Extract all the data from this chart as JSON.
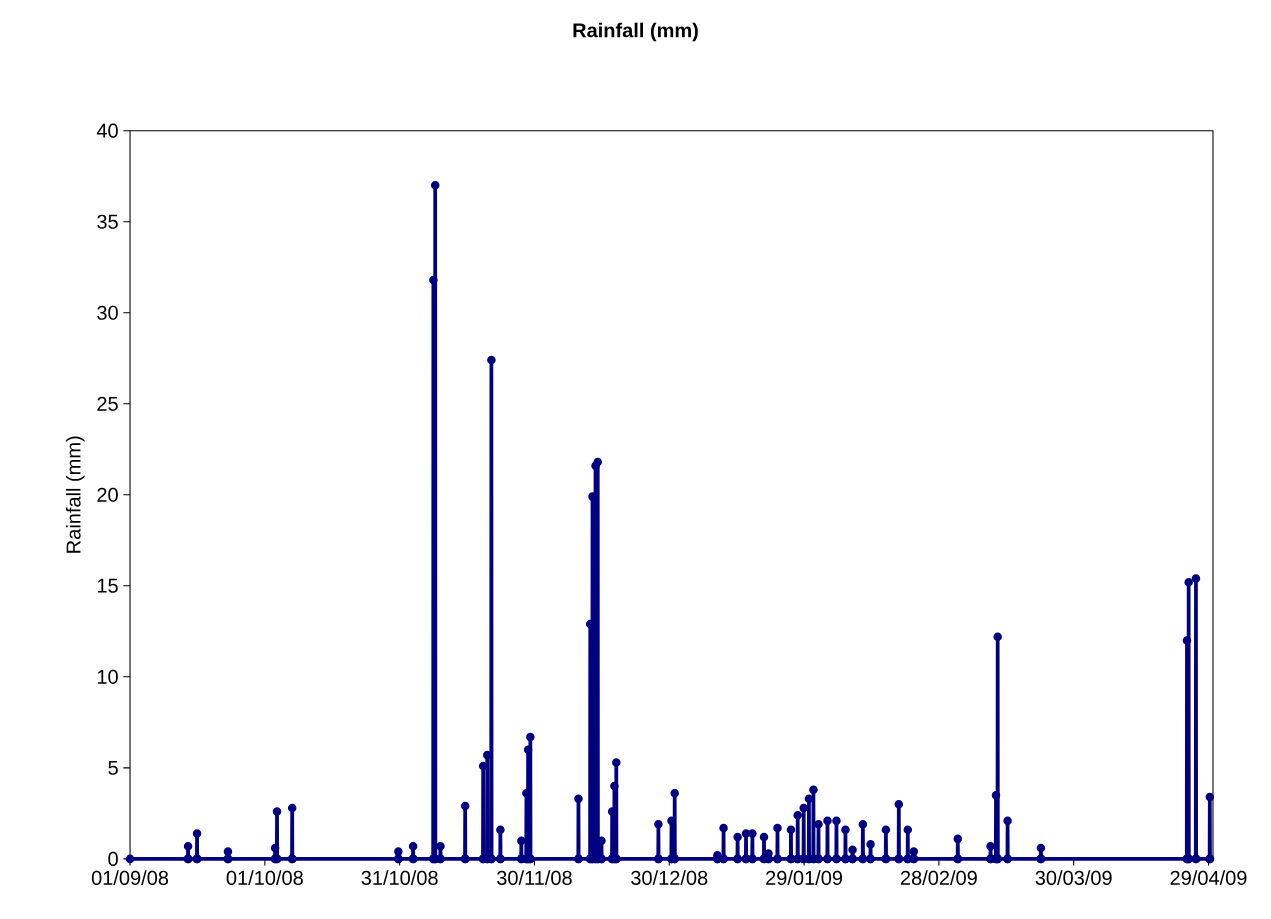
{
  "chart_data": {
    "type": "line",
    "title": "Rainfall (mm)",
    "ylabel": "Rainfall (mm)",
    "color": "#000080",
    "marker": "circle",
    "line_style": "solid",
    "grid": false,
    "xlim": [
      "2008-09-01",
      "2009-04-30"
    ],
    "ylim": [
      0,
      40
    ],
    "xticks": [
      {
        "value": "2008-09-01",
        "label": "01/09/08"
      },
      {
        "value": "2008-10-01",
        "label": "01/10/08"
      },
      {
        "value": "2008-10-31",
        "label": "31/10/08"
      },
      {
        "value": "2008-11-30",
        "label": "30/11/08"
      },
      {
        "value": "2008-12-30",
        "label": "30/12/08"
      },
      {
        "value": "2009-01-29",
        "label": "29/01/09"
      },
      {
        "value": "2009-02-28",
        "label": "28/02/09"
      },
      {
        "value": "2009-03-30",
        "label": "30/03/09"
      },
      {
        "value": "2009-04-29",
        "label": "29/04/09"
      }
    ],
    "yticks": [
      0,
      5,
      10,
      15,
      20,
      25,
      30,
      35,
      40
    ],
    "x": [
      "2008-09-01T00:00",
      "2008-09-13T21:00",
      "2008-09-13T22:00",
      "2008-09-13T23:00",
      "2008-09-15T21:00",
      "2008-09-15T22:00",
      "2008-09-15T23:00",
      "2008-09-22T18:00",
      "2008-09-22T19:00",
      "2008-09-22T20:00",
      "2008-10-03T06:00",
      "2008-10-03T07:00",
      "2008-10-03T08:00",
      "2008-10-03T16:00",
      "2008-10-03T17:00",
      "2008-10-03T18:00",
      "2008-10-07T01:00",
      "2008-10-07T02:00",
      "2008-10-07T03:00",
      "2008-10-30T16:00",
      "2008-10-30T17:00",
      "2008-10-30T18:00",
      "2008-11-02T23:00",
      "2008-11-03T00:00",
      "2008-11-03T01:00",
      "2008-11-07T11:00",
      "2008-11-07T12:00",
      "2008-11-07T13:00",
      "2008-11-07T21:00",
      "2008-11-07T22:00",
      "2008-11-07T23:00",
      "2008-11-09T01:00",
      "2008-11-09T02:00",
      "2008-11-09T03:00",
      "2008-11-14T13:00",
      "2008-11-14T14:00",
      "2008-11-14T15:00",
      "2008-11-18T13:00",
      "2008-11-18T14:00",
      "2008-11-18T15:00",
      "2008-11-19T11:00",
      "2008-11-19T12:00",
      "2008-11-19T13:00",
      "2008-11-20T09:00",
      "2008-11-20T10:00",
      "2008-11-20T11:00",
      "2008-11-22T09:00",
      "2008-11-22T10:00",
      "2008-11-22T11:00",
      "2008-11-27T01:00",
      "2008-11-27T02:00",
      "2008-11-27T03:00",
      "2008-11-28T04:00",
      "2008-11-28T05:00",
      "2008-11-28T06:00",
      "2008-11-28T13:00",
      "2008-11-28T14:00",
      "2008-11-28T15:00",
      "2008-11-29T01:00",
      "2008-11-29T02:00",
      "2008-11-29T03:00",
      "2008-12-09T18:00",
      "2008-12-09T19:00",
      "2008-12-09T20:00",
      "2008-12-12T09:00",
      "2008-12-12T10:00",
      "2008-12-12T11:00",
      "2008-12-12T21:00",
      "2008-12-12T22:00",
      "2008-12-12T23:00",
      "2008-12-13T13:00",
      "2008-12-13T14:00",
      "2008-12-13T15:00",
      "2008-12-14T01:00",
      "2008-12-14T02:00",
      "2008-12-14T03:00",
      "2008-12-14T21:00",
      "2008-12-14T22:00",
      "2008-12-14T23:00",
      "2008-12-17T06:00",
      "2008-12-17T07:00",
      "2008-12-17T08:00",
      "2008-12-17T18:00",
      "2008-12-17T19:00",
      "2008-12-17T20:00",
      "2008-12-18T04:00",
      "2008-12-18T05:00",
      "2008-12-18T06:00",
      "2008-12-27T13:00",
      "2008-12-27T14:00",
      "2008-12-27T15:00",
      "2008-12-30T11:00",
      "2008-12-30T12:00",
      "2008-12-30T13:00",
      "2008-12-31T04:00",
      "2008-12-31T05:00",
      "2008-12-31T06:00",
      "2009-01-09T16:00",
      "2009-01-09T17:00",
      "2009-01-09T18:00",
      "2009-01-11T01:00",
      "2009-01-11T02:00",
      "2009-01-11T03:00",
      "2009-01-14T04:00",
      "2009-01-14T05:00",
      "2009-01-14T06:00",
      "2009-01-16T01:00",
      "2009-01-16T02:00",
      "2009-01-16T03:00",
      "2009-01-17T11:00",
      "2009-01-17T12:00",
      "2009-01-17T13:00",
      "2009-01-20T01:00",
      "2009-01-20T02:00",
      "2009-01-20T03:00",
      "2009-01-21T01:00",
      "2009-01-21T02:00",
      "2009-01-21T03:00",
      "2009-01-23T01:00",
      "2009-01-23T02:00",
      "2009-01-23T03:00",
      "2009-01-26T01:00",
      "2009-01-26T02:00",
      "2009-01-26T03:00",
      "2009-01-27T13:00",
      "2009-01-27T14:00",
      "2009-01-27T15:00",
      "2009-01-28T21:00",
      "2009-01-28T22:00",
      "2009-01-28T23:00",
      "2009-01-30T01:00",
      "2009-01-30T02:00",
      "2009-01-30T03:00",
      "2009-01-31T01:00",
      "2009-01-31T02:00",
      "2009-01-31T03:00",
      "2009-02-01T04:00",
      "2009-02-01T05:00",
      "2009-02-01T06:00",
      "2009-02-03T04:00",
      "2009-02-03T05:00",
      "2009-02-03T06:00",
      "2009-02-05T04:00",
      "2009-02-05T05:00",
      "2009-02-05T06:00",
      "2009-02-07T04:00",
      "2009-02-07T05:00",
      "2009-02-07T06:00",
      "2009-02-08T18:00",
      "2009-02-08T19:00",
      "2009-02-08T20:00",
      "2009-02-11T01:00",
      "2009-02-11T02:00",
      "2009-02-11T03:00",
      "2009-02-12T18:00",
      "2009-02-12T19:00",
      "2009-02-12T20:00",
      "2009-02-16T04:00",
      "2009-02-16T05:00",
      "2009-02-16T06:00",
      "2009-02-19T01:00",
      "2009-02-19T02:00",
      "2009-02-19T03:00",
      "2009-02-21T01:00",
      "2009-02-21T02:00",
      "2009-02-21T03:00",
      "2009-02-22T09:00",
      "2009-02-22T10:00",
      "2009-02-22T11:00",
      "2009-03-04T04:00",
      "2009-03-04T05:00",
      "2009-03-04T06:00",
      "2009-03-11T11:00",
      "2009-03-11T12:00",
      "2009-03-11T13:00",
      "2009-03-12T16:00",
      "2009-03-12T17:00",
      "2009-03-12T18:00",
      "2009-03-13T01:00",
      "2009-03-13T02:00",
      "2009-03-13T03:00",
      "2009-03-15T06:00",
      "2009-03-15T07:00",
      "2009-03-15T08:00",
      "2009-03-22T16:00",
      "2009-03-22T17:00",
      "2009-03-22T18:00",
      "2009-04-24T04:00",
      "2009-04-24T05:00",
      "2009-04-24T06:00",
      "2009-04-24T13:00",
      "2009-04-24T14:00",
      "2009-04-24T15:00",
      "2009-04-26T04:00",
      "2009-04-26T05:00",
      "2009-04-26T06:00",
      "2009-04-29T06:00",
      "2009-04-29T07:00",
      "2009-04-29T08:00"
    ],
    "values": [
      0,
      0,
      0.7,
      0,
      0,
      1.4,
      0,
      0,
      0.4,
      0,
      0,
      0.6,
      0,
      0,
      2.6,
      0,
      0,
      2.8,
      0,
      0,
      0.4,
      0,
      0,
      0.7,
      0,
      0,
      31.8,
      0,
      0,
      37.0,
      0,
      0,
      0.7,
      0,
      0,
      2.9,
      0,
      0,
      5.1,
      0,
      0,
      5.7,
      0,
      0,
      27.4,
      0,
      0,
      1.6,
      0,
      0,
      1.0,
      0,
      0,
      3.6,
      0,
      0,
      6.0,
      0,
      0,
      6.7,
      0,
      0,
      3.3,
      0,
      0,
      12.9,
      0,
      0,
      19.9,
      0,
      0,
      21.6,
      0,
      0,
      21.8,
      0,
      0,
      1.0,
      0,
      0,
      2.6,
      0,
      0,
      4.0,
      0,
      0,
      5.3,
      0,
      0,
      1.9,
      0,
      0,
      2.1,
      0,
      0,
      3.6,
      0,
      0,
      0.2,
      0,
      0,
      1.7,
      0,
      0,
      1.2,
      0,
      0,
      1.4,
      0,
      0,
      1.4,
      0,
      0,
      1.2,
      0,
      0,
      0.3,
      0,
      0,
      1.7,
      0,
      0,
      1.6,
      0,
      0,
      2.4,
      0,
      0,
      2.8,
      0,
      0,
      3.3,
      0,
      0,
      3.8,
      0,
      0,
      1.9,
      0,
      0,
      2.1,
      0,
      0,
      2.1,
      0,
      0,
      1.6,
      0,
      0,
      0.5,
      0,
      0,
      1.9,
      0,
      0,
      0.8,
      0,
      0,
      1.6,
      0,
      0,
      3.0,
      0,
      0,
      1.6,
      0,
      0,
      0.4,
      0,
      0,
      1.1,
      0,
      0,
      0.7,
      0,
      0,
      3.5,
      0,
      0,
      12.2,
      0,
      0,
      2.1,
      0,
      0,
      0.6,
      0,
      0,
      12.0,
      0,
      0,
      15.2,
      0,
      0,
      15.4,
      0,
      0,
      3.4,
      0
    ]
  }
}
